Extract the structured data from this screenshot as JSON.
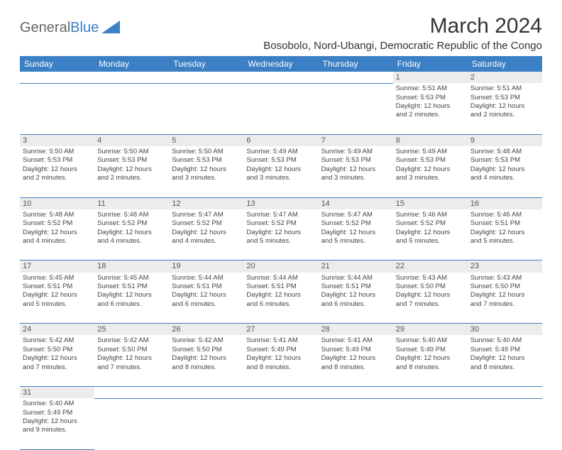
{
  "logo": {
    "part1": "General",
    "part2": "Blue"
  },
  "title": "March 2024",
  "location": "Bosobolo, Nord-Ubangi, Democratic Republic of the Congo",
  "colors": {
    "header_bg": "#3b7fc4",
    "grid_line": "#3b7fc4",
    "daynum_bg": "#ececec"
  },
  "weekdays": [
    "Sunday",
    "Monday",
    "Tuesday",
    "Wednesday",
    "Thursday",
    "Friday",
    "Saturday"
  ],
  "weeks": [
    [
      null,
      null,
      null,
      null,
      null,
      {
        "n": "1",
        "sr": "Sunrise: 5:51 AM",
        "ss": "Sunset: 5:53 PM",
        "d1": "Daylight: 12 hours",
        "d2": "and 2 minutes."
      },
      {
        "n": "2",
        "sr": "Sunrise: 5:51 AM",
        "ss": "Sunset: 5:53 PM",
        "d1": "Daylight: 12 hours",
        "d2": "and 2 minutes."
      }
    ],
    [
      {
        "n": "3",
        "sr": "Sunrise: 5:50 AM",
        "ss": "Sunset: 5:53 PM",
        "d1": "Daylight: 12 hours",
        "d2": "and 2 minutes."
      },
      {
        "n": "4",
        "sr": "Sunrise: 5:50 AM",
        "ss": "Sunset: 5:53 PM",
        "d1": "Daylight: 12 hours",
        "d2": "and 2 minutes."
      },
      {
        "n": "5",
        "sr": "Sunrise: 5:50 AM",
        "ss": "Sunset: 5:53 PM",
        "d1": "Daylight: 12 hours",
        "d2": "and 3 minutes."
      },
      {
        "n": "6",
        "sr": "Sunrise: 5:49 AM",
        "ss": "Sunset: 5:53 PM",
        "d1": "Daylight: 12 hours",
        "d2": "and 3 minutes."
      },
      {
        "n": "7",
        "sr": "Sunrise: 5:49 AM",
        "ss": "Sunset: 5:53 PM",
        "d1": "Daylight: 12 hours",
        "d2": "and 3 minutes."
      },
      {
        "n": "8",
        "sr": "Sunrise: 5:49 AM",
        "ss": "Sunset: 5:53 PM",
        "d1": "Daylight: 12 hours",
        "d2": "and 3 minutes."
      },
      {
        "n": "9",
        "sr": "Sunrise: 5:48 AM",
        "ss": "Sunset: 5:53 PM",
        "d1": "Daylight: 12 hours",
        "d2": "and 4 minutes."
      }
    ],
    [
      {
        "n": "10",
        "sr": "Sunrise: 5:48 AM",
        "ss": "Sunset: 5:52 PM",
        "d1": "Daylight: 12 hours",
        "d2": "and 4 minutes."
      },
      {
        "n": "11",
        "sr": "Sunrise: 5:48 AM",
        "ss": "Sunset: 5:52 PM",
        "d1": "Daylight: 12 hours",
        "d2": "and 4 minutes."
      },
      {
        "n": "12",
        "sr": "Sunrise: 5:47 AM",
        "ss": "Sunset: 5:52 PM",
        "d1": "Daylight: 12 hours",
        "d2": "and 4 minutes."
      },
      {
        "n": "13",
        "sr": "Sunrise: 5:47 AM",
        "ss": "Sunset: 5:52 PM",
        "d1": "Daylight: 12 hours",
        "d2": "and 5 minutes."
      },
      {
        "n": "14",
        "sr": "Sunrise: 5:47 AM",
        "ss": "Sunset: 5:52 PM",
        "d1": "Daylight: 12 hours",
        "d2": "and 5 minutes."
      },
      {
        "n": "15",
        "sr": "Sunrise: 5:46 AM",
        "ss": "Sunset: 5:52 PM",
        "d1": "Daylight: 12 hours",
        "d2": "and 5 minutes."
      },
      {
        "n": "16",
        "sr": "Sunrise: 5:46 AM",
        "ss": "Sunset: 5:51 PM",
        "d1": "Daylight: 12 hours",
        "d2": "and 5 minutes."
      }
    ],
    [
      {
        "n": "17",
        "sr": "Sunrise: 5:45 AM",
        "ss": "Sunset: 5:51 PM",
        "d1": "Daylight: 12 hours",
        "d2": "and 5 minutes."
      },
      {
        "n": "18",
        "sr": "Sunrise: 5:45 AM",
        "ss": "Sunset: 5:51 PM",
        "d1": "Daylight: 12 hours",
        "d2": "and 6 minutes."
      },
      {
        "n": "19",
        "sr": "Sunrise: 5:44 AM",
        "ss": "Sunset: 5:51 PM",
        "d1": "Daylight: 12 hours",
        "d2": "and 6 minutes."
      },
      {
        "n": "20",
        "sr": "Sunrise: 5:44 AM",
        "ss": "Sunset: 5:51 PM",
        "d1": "Daylight: 12 hours",
        "d2": "and 6 minutes."
      },
      {
        "n": "21",
        "sr": "Sunrise: 5:44 AM",
        "ss": "Sunset: 5:51 PM",
        "d1": "Daylight: 12 hours",
        "d2": "and 6 minutes."
      },
      {
        "n": "22",
        "sr": "Sunrise: 5:43 AM",
        "ss": "Sunset: 5:50 PM",
        "d1": "Daylight: 12 hours",
        "d2": "and 7 minutes."
      },
      {
        "n": "23",
        "sr": "Sunrise: 5:43 AM",
        "ss": "Sunset: 5:50 PM",
        "d1": "Daylight: 12 hours",
        "d2": "and 7 minutes."
      }
    ],
    [
      {
        "n": "24",
        "sr": "Sunrise: 5:42 AM",
        "ss": "Sunset: 5:50 PM",
        "d1": "Daylight: 12 hours",
        "d2": "and 7 minutes."
      },
      {
        "n": "25",
        "sr": "Sunrise: 5:42 AM",
        "ss": "Sunset: 5:50 PM",
        "d1": "Daylight: 12 hours",
        "d2": "and 7 minutes."
      },
      {
        "n": "26",
        "sr": "Sunrise: 5:42 AM",
        "ss": "Sunset: 5:50 PM",
        "d1": "Daylight: 12 hours",
        "d2": "and 8 minutes."
      },
      {
        "n": "27",
        "sr": "Sunrise: 5:41 AM",
        "ss": "Sunset: 5:49 PM",
        "d1": "Daylight: 12 hours",
        "d2": "and 8 minutes."
      },
      {
        "n": "28",
        "sr": "Sunrise: 5:41 AM",
        "ss": "Sunset: 5:49 PM",
        "d1": "Daylight: 12 hours",
        "d2": "and 8 minutes."
      },
      {
        "n": "29",
        "sr": "Sunrise: 5:40 AM",
        "ss": "Sunset: 5:49 PM",
        "d1": "Daylight: 12 hours",
        "d2": "and 8 minutes."
      },
      {
        "n": "30",
        "sr": "Sunrise: 5:40 AM",
        "ss": "Sunset: 5:49 PM",
        "d1": "Daylight: 12 hours",
        "d2": "and 8 minutes."
      }
    ],
    [
      {
        "n": "31",
        "sr": "Sunrise: 5:40 AM",
        "ss": "Sunset: 5:49 PM",
        "d1": "Daylight: 12 hours",
        "d2": "and 9 minutes."
      },
      null,
      null,
      null,
      null,
      null,
      null
    ]
  ]
}
